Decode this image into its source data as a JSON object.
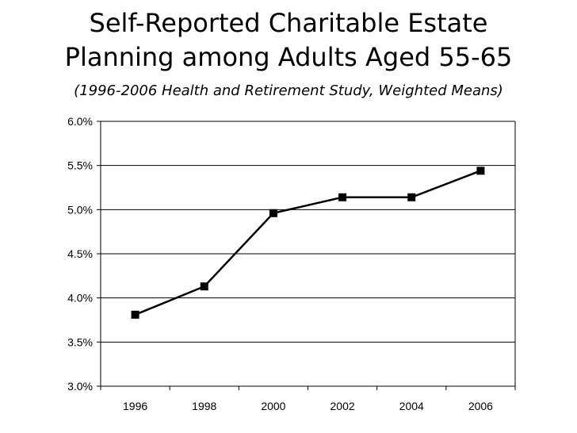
{
  "title_line1": "Self-Reported Charitable Estate",
  "title_line2": "Planning among Adults Aged 55-65",
  "subtitle": "(1996-2006 Health and Retirement Study, Weighted Means)",
  "chart_data": {
    "type": "line",
    "title": "Self-Reported Charitable Estate Planning among Adults Aged 55-65",
    "subtitle": "(1996-2006 Health and Retirement Study, Weighted Means)",
    "categories": [
      "1996",
      "1998",
      "2000",
      "2002",
      "2004",
      "2006"
    ],
    "series": [
      {
        "values": [
          3.81,
          4.13,
          4.96,
          5.14,
          5.14,
          5.44
        ]
      }
    ],
    "y_ticks": [
      "3.0%",
      "3.5%",
      "4.0%",
      "4.5%",
      "5.0%",
      "5.5%",
      "6.0%"
    ],
    "ylim": [
      3.0,
      6.0
    ],
    "y_unit": "%",
    "grid": "horizontal",
    "legend": "none",
    "line_color": "#000000",
    "marker": "square"
  }
}
